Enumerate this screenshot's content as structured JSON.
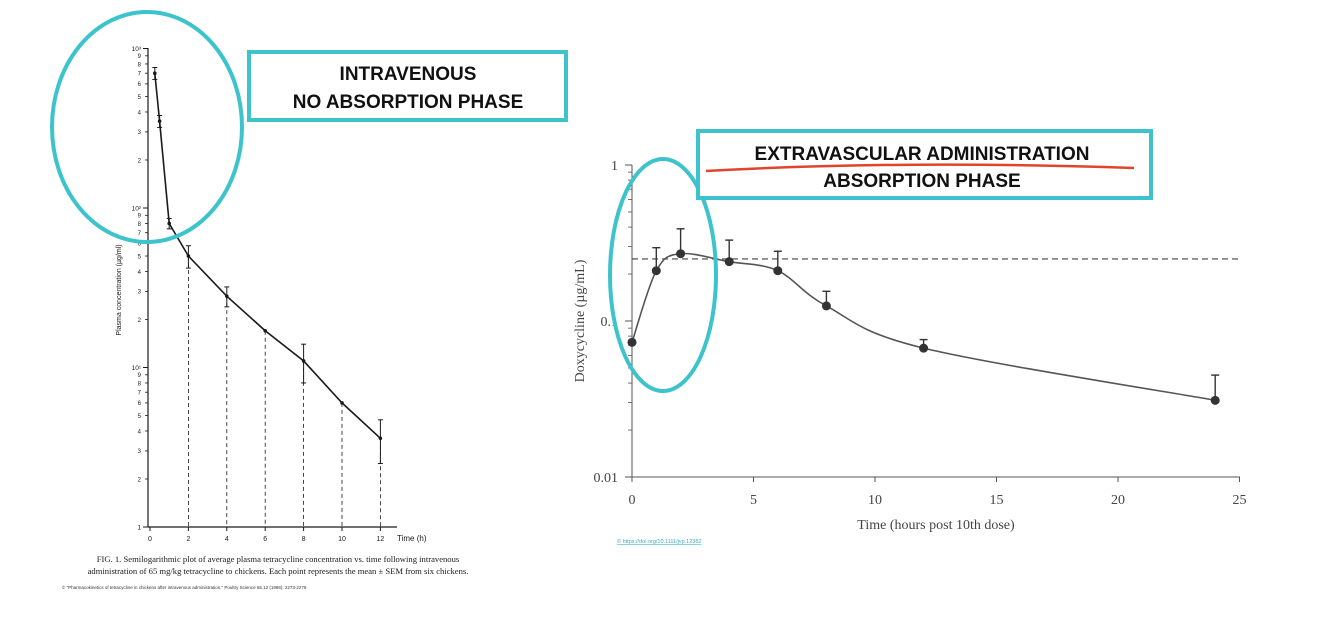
{
  "colors": {
    "highlight": "#3cc3cc",
    "underline": "#e0452b",
    "ink": "#1a1a1a",
    "link": "#37aebd"
  },
  "annotations": {
    "left_box_line1": "INTRAVENOUS",
    "left_box_line2": "NO ABSORPTION PHASE",
    "right_box_line1": "EXTRAVASCULAR ADMINISTRATION",
    "right_box_line2": "ABSORPTION PHASE"
  },
  "left_caption": {
    "line1": "FIG. 1. Semilogarithmic plot of average plasma tetracycline concentration vs. time following intravenous",
    "line2": "administration of 65 mg/kg tetracycline to chickens. Each point represents the mean ± SEM from six chickens.",
    "source": "© \"Pharmacokinetics of tetracycline in chickens after intravenous administration.\" Poultry Science 65.12 (1986): 2273-2279"
  },
  "right_source": "© https://doi.org/10.1111/jvp.12382",
  "chart_data": [
    {
      "type": "line",
      "scale": "log",
      "xlabel": "Time (h)",
      "ylabel": "Plasma concentration (µg/ml)",
      "xlim": [
        0,
        13
      ],
      "ylim": [
        1,
        1000
      ],
      "x_ticks": [
        "0",
        "2",
        "4",
        "6",
        "8",
        "10",
        "12"
      ],
      "y_decade_labels": [
        "1",
        "10¹",
        "10²",
        "10³"
      ],
      "y_minor_labels": [
        "2",
        "3",
        "4",
        "5",
        "6",
        "7",
        "8",
        "9"
      ],
      "series": [
        {
          "x": [
            0.25,
            0.5,
            1,
            2,
            4,
            6,
            8,
            10,
            12
          ],
          "values": [
            700,
            350,
            80,
            50,
            28,
            17,
            11,
            6,
            3.6
          ],
          "error": [
            60,
            30,
            6,
            8,
            4,
            0,
            3,
            0,
            1.1
          ]
        }
      ]
    },
    {
      "type": "line",
      "scale": "log",
      "xlabel": "Time (hours post 10th dose)",
      "ylabel": "Doxycycline (µg/mL)",
      "xlim": [
        0,
        25
      ],
      "ylim": [
        0.01,
        1
      ],
      "x_ticks": [
        "0",
        "5",
        "10",
        "15",
        "20",
        "25"
      ],
      "y_ticks": [
        "0.01",
        "0.1",
        "1"
      ],
      "reference_line": 0.25,
      "series": [
        {
          "x": [
            0,
            1,
            2,
            4,
            6,
            8,
            12,
            24
          ],
          "values": [
            0.073,
            0.21,
            0.27,
            0.24,
            0.21,
            0.125,
            0.067,
            0.031
          ],
          "error": [
            0,
            0.085,
            0.12,
            0.09,
            0.07,
            0.03,
            0.009,
            0.014
          ]
        }
      ]
    }
  ]
}
